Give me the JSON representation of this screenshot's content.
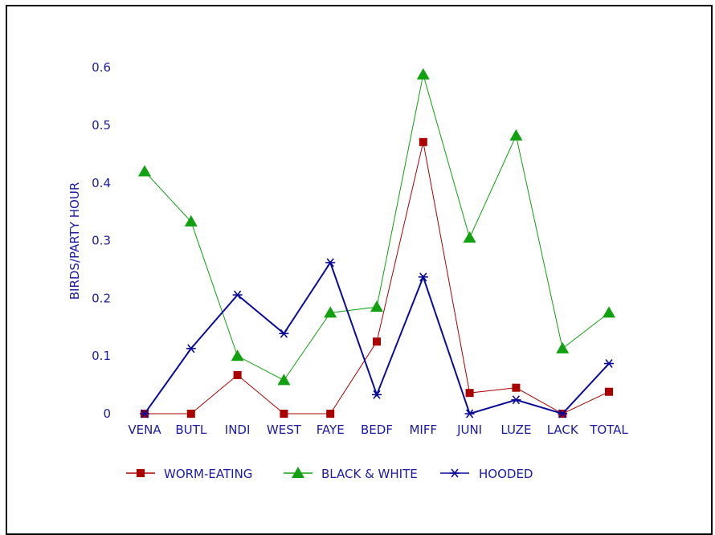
{
  "chart_data": {
    "type": "line",
    "title": "",
    "xlabel": "",
    "ylabel": "BIRDS/PARTY HOUR",
    "categories": [
      "VENA",
      "BUTL",
      "INDI",
      "WEST",
      "FAYE",
      "BEDF",
      "MIFF",
      "JUNI",
      "LUZE",
      "LACK",
      "TOTAL"
    ],
    "yticks": [
      "0",
      "0.1",
      "0.2",
      "0.3",
      "0.4",
      "0.5",
      "0.6"
    ],
    "ylim": [
      0,
      0.6
    ],
    "grid": false,
    "legend_position": "bottom",
    "series": [
      {
        "name": "WORM-EATING",
        "color": "#aa0000",
        "marker": "square",
        "values": [
          0,
          0,
          0.067,
          0,
          0,
          0.125,
          0.471,
          0.036,
          0.045,
          0,
          0.038
        ]
      },
      {
        "name": "BLACK & WHITE",
        "color": "#10a010",
        "marker": "triangle",
        "values": [
          0.42,
          0.333,
          0.1,
          0.058,
          0.175,
          0.185,
          0.588,
          0.305,
          0.482,
          0.113,
          0.175
        ]
      },
      {
        "name": "HOODED",
        "color": "#0a0a9a",
        "marker": "asterisk",
        "values": [
          0,
          0.113,
          0.206,
          0.139,
          0.262,
          0.033,
          0.237,
          0,
          0.024,
          0,
          0.087
        ]
      }
    ]
  }
}
